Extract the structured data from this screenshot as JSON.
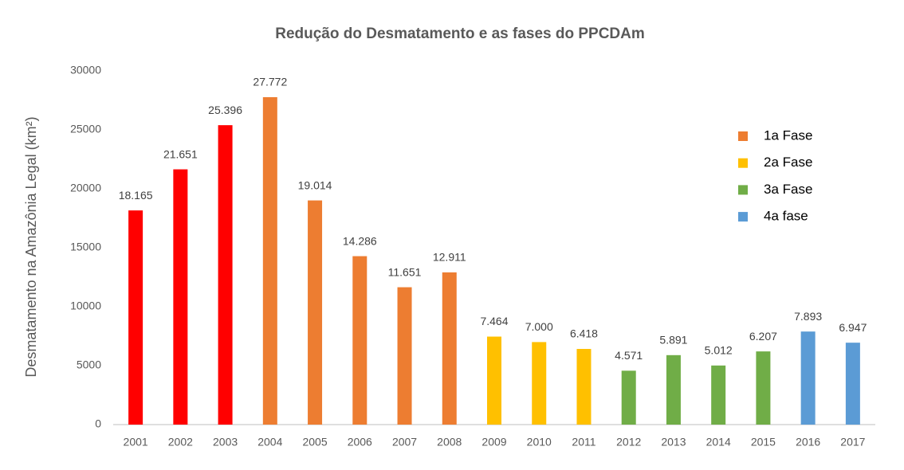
{
  "chart_data": {
    "type": "bar",
    "title": "Redução do Desmatamento e as fases do PPCDAm",
    "y_label": "Desmatamento na Amazônia Legal (km²)",
    "categories": [
      "2001",
      "2002",
      "2003",
      "2004",
      "2005",
      "2006",
      "2007",
      "2008",
      "2009",
      "2010",
      "2011",
      "2012",
      "2013",
      "2014",
      "2015",
      "2016",
      "2017"
    ],
    "values": [
      18165,
      21651,
      25396,
      27772,
      19014,
      14286,
      11651,
      12911,
      7464,
      7000,
      6418,
      4571,
      5891,
      5012,
      6207,
      7893,
      6947
    ],
    "value_labels": [
      "18.165",
      "21.651",
      "25.396",
      "27.772",
      "19.014",
      "14.286",
      "11.651",
      "12.911",
      "7.464",
      "7.000",
      "6.418",
      "4.571",
      "5.891",
      "5.012",
      "6.207",
      "7.893",
      "6.947"
    ],
    "colors": [
      "#ff0000",
      "#ff0000",
      "#ff0000",
      "#ed7d31",
      "#ed7d31",
      "#ed7d31",
      "#ed7d31",
      "#ed7d31",
      "#ffc000",
      "#ffc000",
      "#ffc000",
      "#70ad47",
      "#70ad47",
      "#70ad47",
      "#70ad47",
      "#5b9bd5",
      "#5b9bd5"
    ],
    "legend": [
      {
        "label": "1a Fase",
        "color": "#ed7d31"
      },
      {
        "label": "2a Fase",
        "color": "#ffc000"
      },
      {
        "label": "3a Fase",
        "color": "#70ad47"
      },
      {
        "label": "4a fase",
        "color": "#5b9bd5"
      }
    ],
    "legend_position": "upper right",
    "ylim": [
      0,
      30000
    ],
    "yticks": [
      0,
      5000,
      10000,
      15000,
      20000,
      25000,
      30000
    ],
    "grid": false
  }
}
